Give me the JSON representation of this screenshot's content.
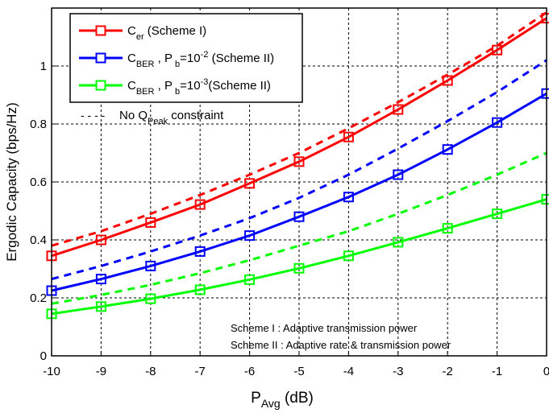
{
  "chart_data": {
    "type": "line",
    "title": "",
    "xlabel": "P",
    "xlabel_sub": "Avg",
    "xlabel_unit": " (dB)",
    "ylabel": "Ergodic Capacity (bps/Hz)",
    "xlim": [
      -10,
      0
    ],
    "ylim": [
      0,
      1.2
    ],
    "xticks": [
      -10,
      -9,
      -8,
      -7,
      -6,
      -5,
      -4,
      -3,
      -2,
      -1,
      0
    ],
    "xtick_labels": [
      "-10",
      "-9",
      "-8",
      "-7",
      "-6",
      "-5",
      "-4",
      "-3",
      "-2",
      "-1",
      "0"
    ],
    "yticks": [
      0,
      0.2,
      0.4,
      0.6,
      0.8,
      1.0
    ],
    "ytick_labels": [
      "0",
      "0.2",
      "0.4",
      "0.6",
      "0.8",
      "1"
    ],
    "grid": true,
    "legend_placement": "top-left",
    "x": [
      -10,
      -9,
      -8,
      -7,
      -6,
      -5,
      -4,
      -3,
      -2,
      -1,
      0
    ],
    "series": [
      {
        "color": "#ff0000",
        "style": "solid",
        "marker": "square",
        "values": [
          0.345,
          0.4,
          0.46,
          0.522,
          0.595,
          0.67,
          0.755,
          0.85,
          0.95,
          1.055,
          1.165
        ]
      },
      {
        "color": "#0000ff",
        "style": "solid",
        "marker": "square",
        "values": [
          0.225,
          0.265,
          0.31,
          0.36,
          0.415,
          0.48,
          0.548,
          0.625,
          0.712,
          0.805,
          0.905
        ]
      },
      {
        "color": "#00ff00",
        "style": "solid",
        "marker": "square",
        "values": [
          0.145,
          0.17,
          0.197,
          0.228,
          0.263,
          0.302,
          0.345,
          0.392,
          0.44,
          0.49,
          0.54
        ]
      },
      {
        "color": "#ff0000",
        "style": "dashed",
        "marker": "none",
        "values": [
          0.38,
          0.43,
          0.49,
          0.555,
          0.625,
          0.7,
          0.785,
          0.875,
          0.97,
          1.07,
          1.185
        ]
      },
      {
        "color": "#0000ff",
        "style": "dashed",
        "marker": "none",
        "values": [
          0.265,
          0.31,
          0.36,
          0.415,
          0.475,
          0.545,
          0.625,
          0.715,
          0.81,
          0.91,
          1.02
        ]
      },
      {
        "color": "#00ff00",
        "style": "dashed",
        "marker": "none",
        "values": [
          0.18,
          0.21,
          0.245,
          0.285,
          0.33,
          0.38,
          0.43,
          0.49,
          0.555,
          0.625,
          0.7
        ]
      }
    ],
    "legend": [
      {
        "color": "#ff0000",
        "dashed": false,
        "marker": true,
        "parts": [
          [
            "C",
            "n"
          ],
          [
            "er",
            "sub"
          ],
          [
            " (Scheme I)",
            "n"
          ]
        ]
      },
      {
        "color": "#0000ff",
        "dashed": false,
        "marker": true,
        "parts": [
          [
            "C",
            "n"
          ],
          [
            "BER",
            "sub"
          ],
          [
            " , P",
            "n"
          ],
          [
            " b",
            "sub"
          ],
          [
            "=10",
            "n"
          ],
          [
            "-2",
            "sup"
          ],
          [
            " (Scheme II)",
            "n"
          ]
        ]
      },
      {
        "color": "#00ff00",
        "dashed": false,
        "marker": true,
        "parts": [
          [
            "C",
            "n"
          ],
          [
            "BER",
            "sub"
          ],
          [
            " , P",
            "n"
          ],
          [
            " b",
            "sub"
          ],
          [
            "=10",
            "n"
          ],
          [
            "-3",
            "sup"
          ],
          [
            "(Scheme II)",
            "n"
          ]
        ]
      }
    ],
    "dash_legend": {
      "line": "- - - -",
      "parts": [
        [
          "No Q",
          "n"
        ],
        [
          "Peak",
          "sub"
        ],
        [
          " constraint",
          "n"
        ]
      ]
    },
    "annotations": [
      "Scheme I : Adaptive transmission power",
      "Scheme II : Adaptive rate & transmission power"
    ]
  }
}
